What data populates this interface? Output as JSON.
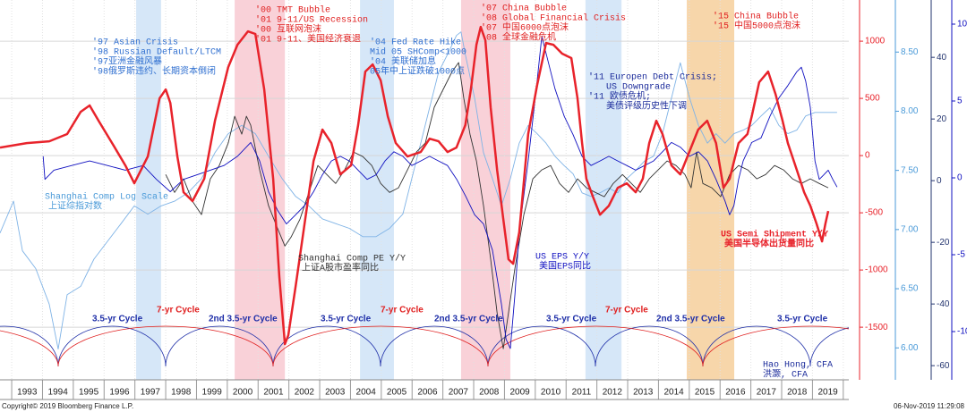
{
  "chart_data": {
    "type": "line",
    "xlim": [
      1992.62,
      2020.18
    ],
    "xticks": [
      1993,
      1994,
      1995,
      1996,
      1997,
      1998,
      1999,
      2000,
      2001,
      2002,
      2003,
      2004,
      2005,
      2006,
      2007,
      2008,
      2009,
      2010,
      2011,
      2012,
      2013,
      2014,
      2015,
      2016,
      2017,
      2018,
      2019,
      2020
    ],
    "categories": [
      "1993",
      "1994",
      "1995",
      "1996",
      "1997",
      "1998",
      "1999",
      "2000",
      "2001",
      "2002",
      "2003",
      "2004",
      "2005",
      "2006",
      "2007",
      "2008",
      "2009",
      "2010",
      "2011",
      "2012",
      "2013",
      "2014",
      "2015",
      "2016",
      "2017",
      "2018",
      "2019"
    ],
    "ylim": [
      -1960,
      1360
    ],
    "yticks": [
      -1500,
      -1000,
      -500,
      0,
      500,
      1000
    ],
    "y2lim": [
      5.73,
      8.94
    ],
    "y2ticks": [
      {
        "value": 6,
        "label": "6.00"
      },
      {
        "value": 6.5,
        "label": "6.50"
      },
      {
        "value": 7,
        "label": "7.00"
      },
      {
        "value": 7.5,
        "label": "7.50"
      },
      {
        "value": 8,
        "label": "8.00"
      },
      {
        "value": 8.5,
        "label": "8.50"
      }
    ],
    "y3lim": [
      -64.6,
      58.6
    ],
    "y3ticks": [
      -60,
      -40,
      -20,
      0,
      20,
      40
    ],
    "y4lim": [
      -13.14,
      11.57
    ],
    "y4ticks": [
      -10,
      -5,
      0,
      5,
      10
    ],
    "grid": true,
    "axis_colors": {
      "y": "#e8232b",
      "y2": "#4a9ad8",
      "y3": "#22336e",
      "y4": "#1010c0"
    },
    "bands": [
      {
        "start": 1997.04,
        "end": 1997.85,
        "color": "#cfe3f7"
      },
      {
        "start": 2000.24,
        "end": 2001.87,
        "color": "#f8c9d1"
      },
      {
        "start": 2004.31,
        "end": 2005.41,
        "color": "#cfe3f7"
      },
      {
        "start": 2007.59,
        "end": 2009.19,
        "color": "#f8c9d1"
      },
      {
        "start": 2011.63,
        "end": 2012.8,
        "color": "#cfe3f7"
      },
      {
        "start": 2014.92,
        "end": 2016.46,
        "color": "#f6cf9b"
      }
    ],
    "series": [
      {
        "name": "US Semi Shipment Y/Y",
        "name_cn": "美国半导体出货量同比",
        "color": "#e8232b",
        "axis": "y",
        "width": 2.5,
        "x": [
          1992.62,
          1993.49,
          1994.22,
          1994.8,
          1995.24,
          1995.53,
          1995.82,
          1996.26,
          1996.69,
          1996.98,
          1997.42,
          1997.8,
          1998.0,
          1998.15,
          1998.38,
          1998.58,
          1998.87,
          1999.25,
          1999.6,
          2000.03,
          2000.33,
          2000.67,
          2000.91,
          2001.2,
          2001.49,
          2001.69,
          2001.87,
          2001.98,
          2002.22,
          2002.51,
          2002.8,
          2003.09,
          2003.38,
          2003.67,
          2004.02,
          2004.25,
          2004.48,
          2004.72,
          2004.98,
          2005.21,
          2005.47,
          2005.85,
          2006.28,
          2006.57,
          2006.86,
          2007.15,
          2007.44,
          2007.73,
          2007.91,
          2008.09,
          2008.23,
          2008.38,
          2008.55,
          2008.76,
          2008.96,
          2009.13,
          2009.28,
          2009.48,
          2009.77,
          2010.06,
          2010.35,
          2010.59,
          2010.87,
          2011.17,
          2011.37,
          2011.52,
          2011.66,
          2011.87,
          2012.1,
          2012.39,
          2012.68,
          2012.97,
          2013.26,
          2013.49,
          2013.7,
          2013.93,
          2014.13,
          2014.42,
          2014.71,
          2015.0,
          2015.29,
          2015.58,
          2015.87,
          2016.11,
          2016.31,
          2016.6,
          2016.89,
          2017.03,
          2017.27,
          2017.56,
          2017.8,
          2018.03,
          2018.2,
          2018.49,
          2018.73,
          2018.93,
          2019.13,
          2019.31,
          2019.42,
          2019.51
        ],
        "values": [
          70,
          109,
          125,
          188,
          383,
          438,
          305,
          109,
          -86,
          -242,
          -8,
          500,
          578,
          461,
          -8,
          -320,
          -398,
          -203,
          305,
          773,
          969,
          1086,
          1063,
          578,
          -203,
          -1063,
          -1648,
          -1570,
          -1141,
          -594,
          -47,
          227,
          109,
          -164,
          -86,
          266,
          734,
          797,
          656,
          344,
          109,
          -8,
          31,
          148,
          125,
          31,
          70,
          266,
          578,
          969,
          1125,
          1008,
          422,
          -125,
          -555,
          -906,
          -945,
          -672,
          188,
          617,
          984,
          969,
          891,
          852,
          500,
          109,
          -203,
          -359,
          -516,
          -438,
          -281,
          -242,
          -320,
          -203,
          109,
          305,
          188,
          -86,
          -164,
          31,
          227,
          305,
          109,
          -281,
          -203,
          109,
          188,
          344,
          641,
          734,
          539,
          305,
          109,
          -125,
          -320,
          -438,
          -594,
          -750,
          -594,
          -484
        ]
      },
      {
        "name": "Shanghai Comp PE Y/Y",
        "name_cn": "上证A股市盈率同比",
        "color": "#333333",
        "axis": "y3",
        "width": 0.9,
        "x": [
          1998.0,
          1998.29,
          1998.58,
          1998.87,
          1999.16,
          1999.45,
          1999.74,
          2000.03,
          2000.24,
          2000.47,
          2000.62,
          2000.76,
          2001.05,
          2001.34,
          2001.63,
          2001.87,
          2002.07,
          2002.36,
          2002.65,
          2002.94,
          2003.23,
          2003.52,
          2003.81,
          2004.1,
          2004.4,
          2004.69,
          2004.98,
          2005.27,
          2005.56,
          2005.85,
          2006.14,
          2006.43,
          2006.72,
          2007.01,
          2007.3,
          2007.51,
          2007.68,
          2007.88,
          2008.09,
          2008.32,
          2008.55,
          2008.76,
          2008.96,
          2009.13,
          2009.34,
          2009.63,
          2009.92,
          2010.21,
          2010.5,
          2010.79,
          2011.08,
          2011.37,
          2011.66,
          2011.95,
          2012.24,
          2012.53,
          2012.83,
          2013.12,
          2013.41,
          2013.7,
          2013.99,
          2014.28,
          2014.57,
          2014.86,
          2015.06,
          2015.24,
          2015.44,
          2015.73,
          2016.02,
          2016.31,
          2016.6,
          2016.9,
          2017.19,
          2017.48,
          2017.77,
          2018.06,
          2018.35,
          2018.64,
          2018.93,
          2019.22,
          2019.51
        ],
        "values": [
          2.0,
          -3.8,
          0.6,
          -6.7,
          -11.0,
          0.6,
          4.9,
          12.2,
          20.9,
          15.1,
          20.9,
          18.0,
          3.5,
          -8.1,
          -15.4,
          -21.2,
          -18.3,
          -12.5,
          -3.8,
          4.9,
          2.0,
          -0.9,
          3.5,
          9.3,
          7.8,
          4.9,
          -0.9,
          -3.8,
          -2.3,
          3.5,
          9.3,
          12.2,
          23.8,
          29.6,
          35.4,
          38.3,
          26.7,
          15.1,
          6.4,
          -8.1,
          -25.5,
          -42.9,
          -54.5,
          -42.9,
          -28.4,
          -11.0,
          0.6,
          3.5,
          4.9,
          -0.9,
          -3.8,
          0.6,
          -2.3,
          -3.8,
          -5.2,
          -0.9,
          2.0,
          -0.9,
          -3.8,
          0.6,
          3.5,
          6.4,
          4.9,
          2.0,
          -2.3,
          9.3,
          -0.9,
          -2.3,
          -5.2,
          2.0,
          4.9,
          3.5,
          0.6,
          2.0,
          4.9,
          3.5,
          0.6,
          -0.9,
          0.6,
          -0.9,
          -2.3
        ]
      },
      {
        "name": "US EPS Y/Y",
        "name_cn": "美国EPS同比",
        "color": "#1010c0",
        "axis": "y4",
        "width": 0.9,
        "x": [
          1994.02,
          1994.08,
          1994.37,
          1994.95,
          1995.53,
          1996.11,
          1996.69,
          1997.27,
          1997.7,
          1998.15,
          1998.58,
          1999.02,
          1999.45,
          1999.89,
          2000.33,
          2000.76,
          2001.05,
          2001.34,
          2001.63,
          2001.92,
          2002.22,
          2002.51,
          2002.8,
          2003.09,
          2003.38,
          2003.67,
          2003.96,
          2004.25,
          2004.54,
          2004.83,
          2005.12,
          2005.41,
          2005.7,
          2005.99,
          2006.28,
          2006.57,
          2006.86,
          2007.15,
          2007.45,
          2007.74,
          2008.03,
          2008.32,
          2008.61,
          2008.9,
          2009.05,
          2009.19,
          2009.34,
          2009.48,
          2009.77,
          2010.06,
          2010.21,
          2010.35,
          2010.64,
          2010.94,
          2011.23,
          2011.52,
          2011.81,
          2012.1,
          2012.39,
          2012.68,
          2012.97,
          2013.26,
          2013.55,
          2013.84,
          2014.13,
          2014.42,
          2014.71,
          2015.01,
          2015.3,
          2015.59,
          2015.87,
          2016.16,
          2016.31,
          2016.45,
          2016.6,
          2016.75,
          2017.03,
          2017.33,
          2017.62,
          2017.91,
          2018.2,
          2018.49,
          2018.64,
          2018.78,
          2018.93,
          2019.08,
          2019.22,
          2019.37,
          2019.51,
          2019.66,
          2019.8
        ],
        "values": [
          1.4,
          -0.1,
          0.5,
          0.8,
          1.1,
          0.8,
          0.5,
          0.8,
          -0.1,
          -0.9,
          -0.1,
          0.2,
          0.5,
          0.8,
          1.4,
          2.3,
          1.1,
          -0.9,
          -2.1,
          -3.0,
          -2.4,
          -1.8,
          -0.9,
          0.2,
          1.1,
          1.4,
          1.1,
          0.5,
          -0.1,
          0.2,
          1.1,
          1.7,
          1.4,
          0.8,
          1.1,
          1.4,
          1.1,
          0.8,
          -0.1,
          -1.2,
          -2.4,
          -3.0,
          -4.7,
          -8.2,
          -10.5,
          -11.1,
          -7.6,
          -3.5,
          1.1,
          6.3,
          9.2,
          8.1,
          5.8,
          4.0,
          2.8,
          1.4,
          0.8,
          1.1,
          1.4,
          1.1,
          0.8,
          0.5,
          0.8,
          1.1,
          1.7,
          2.3,
          2.0,
          1.4,
          1.7,
          1.1,
          -0.1,
          -1.5,
          -2.4,
          -1.8,
          -0.1,
          1.1,
          2.3,
          2.6,
          4.0,
          5.2,
          6.0,
          6.9,
          7.2,
          6.3,
          4.6,
          1.1,
          -0.1,
          0.2,
          0.5,
          -0.1,
          -0.6
        ]
      },
      {
        "name": "Shanghai Comp Log Scale",
        "name_cn": "上证综指对数",
        "color": "#7fb3e6",
        "axis": "y2",
        "width": 0.9,
        "x": [
          1992.62,
          1993.06,
          1993.35,
          1993.78,
          1994.22,
          1994.51,
          1994.8,
          1995.24,
          1995.67,
          1996.11,
          1996.55,
          1996.98,
          1997.42,
          1997.85,
          1998.29,
          1998.72,
          1999.16,
          1999.6,
          2000.03,
          2000.47,
          2000.91,
          2001.34,
          2001.78,
          2002.22,
          2002.65,
          2003.09,
          2003.52,
          2003.96,
          2004.4,
          2004.83,
          2005.27,
          2005.7,
          2005.99,
          2006.28,
          2006.57,
          2006.86,
          2007.15,
          2007.44,
          2007.59,
          2007.73,
          2008.03,
          2008.32,
          2008.61,
          2008.9,
          2009.19,
          2009.48,
          2009.77,
          2010.06,
          2010.35,
          2010.64,
          2010.94,
          2011.23,
          2011.52,
          2011.81,
          2012.1,
          2012.39,
          2012.68,
          2012.97,
          2013.26,
          2013.55,
          2013.84,
          2014.13,
          2014.42,
          2014.71,
          2015.01,
          2015.3,
          2015.59,
          2015.87,
          2016.16,
          2016.45,
          2016.75,
          2017.03,
          2017.33,
          2017.62,
          2017.91,
          2018.2,
          2018.49,
          2018.78,
          2019.08,
          2019.37,
          2019.8
        ],
        "values": [
          6.97,
          7.24,
          6.82,
          6.67,
          6.37,
          5.99,
          6.45,
          6.52,
          6.75,
          6.9,
          7.05,
          7.2,
          7.13,
          7.2,
          7.24,
          7.31,
          7.43,
          7.65,
          7.81,
          7.88,
          7.81,
          7.62,
          7.43,
          7.28,
          7.2,
          7.09,
          7.05,
          7.01,
          6.94,
          6.94,
          7.01,
          7.13,
          7.43,
          7.73,
          8.03,
          8.33,
          8.48,
          8.64,
          8.67,
          8.48,
          8.11,
          7.65,
          7.43,
          7.2,
          7.43,
          7.73,
          7.88,
          7.81,
          7.73,
          7.62,
          7.54,
          7.47,
          7.31,
          7.28,
          7.31,
          7.35,
          7.31,
          7.43,
          7.5,
          7.58,
          7.62,
          7.81,
          8.11,
          8.41,
          8.11,
          7.88,
          7.73,
          7.81,
          7.73,
          7.81,
          7.84,
          7.88,
          7.96,
          8.03,
          7.88,
          7.81,
          7.84,
          7.96,
          7.99,
          7.99,
          7.99
        ]
      }
    ],
    "annotations": [
      {
        "color": "#2f6fd0",
        "lines": [
          "'97 Asian Crisis",
          "'98 Russian Default/LTCM",
          "'97亚洲金融风暴",
          "'98俄罗斯违约、长期资本倒闭"
        ]
      },
      {
        "color": "#e02020",
        "lines": [
          "'00 TMT Bubble",
          "'01 9-11/US Recession",
          "'00 互联网泡沫",
          "'01 9-11、美国经济衰退"
        ]
      },
      {
        "color": "#2f6fd0",
        "lines": [
          "'04 Fed Rate Hike",
          "Mid 05 SHComp<1000",
          "'04 美联储加息",
          "05年中上证跌破1000点"
        ]
      },
      {
        "color": "#e02020",
        "lines": [
          "'07 China Bubble",
          "'08 Global Financial Crisis",
          "'07 中国6000点泡沫",
          "'08 全球金融危机"
        ]
      },
      {
        "color": "#1a2a9a",
        "lines": [
          "'11 Europen Debt Crisis;",
          "US Downgrade",
          "'11 欧债危机;",
          "美债评级历史性下调"
        ]
      },
      {
        "color": "#e02020",
        "lines": [
          "'15 China Bubble",
          "'15 中国5000点泡沫"
        ]
      },
      {
        "color": "#1a2a9a",
        "lines": [
          "Hao Hong, CFA",
          "洪灏, CFA"
        ]
      }
    ],
    "cycle_labels": [
      {
        "text": "3.5-yr Cycle",
        "color": "#1f2fa8"
      },
      {
        "text": "7-yr Cycle",
        "color": "#e02020"
      },
      {
        "text": "2nd 3.5-yr Cycle",
        "color": "#1f2fa8"
      },
      {
        "text": "3.5-yr Cycle",
        "color": "#1f2fa8"
      },
      {
        "text": "7-yr Cycle",
        "color": "#e02020"
      },
      {
        "text": "2nd 3.5-yr Cycle",
        "color": "#1f2fa8"
      },
      {
        "text": "3.5-yr Cycle",
        "color": "#1f2fa8"
      },
      {
        "text": "7-yr Cycle",
        "color": "#e02020"
      },
      {
        "text": "2nd 3.5-yr Cycle",
        "color": "#1f2fa8"
      },
      {
        "text": "3.5-yr Cycle",
        "color": "#1f2fa8"
      }
    ],
    "footer": {
      "left": "Copyright© 2019 Bloomberg Finance L.P.",
      "right": "06-Nov-2019 11:29:08"
    }
  }
}
